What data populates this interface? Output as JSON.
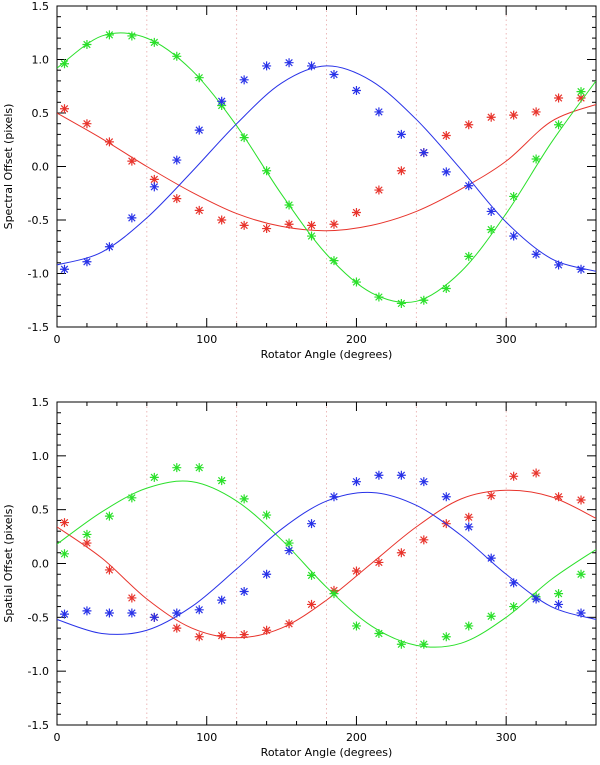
{
  "chart_data": [
    {
      "type": "scatter",
      "title": "",
      "xlabel": "Rotator Angle (degrees)",
      "ylabel": "Spectral Offset (pixels)",
      "xlim": [
        0,
        360
      ],
      "ylim": [
        -1.5,
        1.5
      ],
      "xticks": [
        0,
        100,
        200,
        300
      ],
      "xtick_labels": [
        "0",
        "100",
        "200",
        "300"
      ],
      "yticks": [
        -1.5,
        -1.0,
        -0.5,
        0.0,
        0.5,
        1.0,
        1.5
      ],
      "ytick_labels": [
        "-1.5",
        "-1.0",
        "-0.5",
        "0.0",
        "0.5",
        "1.0",
        "1.5"
      ],
      "reference_lines_x": [
        60,
        120,
        180,
        240,
        300
      ],
      "series": [
        {
          "name": "red",
          "color": "#e8342c",
          "x": [
            5,
            20,
            35,
            50,
            65,
            80,
            95,
            110,
            125,
            140,
            155,
            170,
            185,
            200,
            215,
            230,
            245,
            260,
            275,
            290,
            305,
            320,
            335,
            350
          ],
          "y": [
            0.54,
            0.4,
            0.23,
            0.05,
            -0.12,
            -0.3,
            -0.41,
            -0.5,
            -0.55,
            -0.58,
            -0.54,
            -0.55,
            -0.54,
            -0.43,
            -0.22,
            -0.04,
            0.13,
            0.29,
            0.39,
            0.46,
            0.48,
            0.51,
            0.64,
            0.64
          ],
          "fit": {
            "x": [
              0,
              30,
              60,
              90,
              120,
              150,
              180,
              210,
              240,
              270,
              300,
              330,
              360
            ],
            "y": [
              0.5,
              0.26,
              0.0,
              -0.24,
              -0.44,
              -0.56,
              -0.6,
              -0.55,
              -0.42,
              -0.21,
              0.05,
              0.42,
              0.58
            ]
          }
        },
        {
          "name": "green",
          "color": "#2ae02a",
          "x": [
            5,
            20,
            35,
            50,
            65,
            80,
            95,
            110,
            125,
            140,
            155,
            170,
            185,
            200,
            215,
            230,
            245,
            260,
            275,
            290,
            305,
            320,
            335,
            350
          ],
          "y": [
            0.96,
            1.14,
            1.23,
            1.22,
            1.16,
            1.03,
            0.83,
            0.57,
            0.27,
            -0.04,
            -0.36,
            -0.65,
            -0.88,
            -1.08,
            -1.22,
            -1.28,
            -1.25,
            -1.14,
            -0.84,
            -0.59,
            -0.28,
            0.07,
            0.39,
            0.7
          ],
          "fit": {
            "x": [
              0,
              30,
              60,
              90,
              120,
              150,
              180,
              210,
              240,
              270,
              300,
              330,
              360
            ],
            "y": [
              0.92,
              1.22,
              1.2,
              0.9,
              0.38,
              -0.26,
              -0.82,
              -1.18,
              -1.26,
              -0.98,
              -0.44,
              0.22,
              0.8
            ]
          }
        },
        {
          "name": "blue",
          "color": "#2832e8",
          "x": [
            5,
            20,
            35,
            50,
            65,
            80,
            95,
            110,
            125,
            140,
            155,
            170,
            185,
            200,
            215,
            230,
            245,
            260,
            275,
            290,
            305,
            320,
            335,
            350
          ],
          "y": [
            -0.96,
            -0.89,
            -0.75,
            -0.48,
            -0.19,
            0.06,
            0.34,
            0.61,
            0.81,
            0.94,
            0.97,
            0.94,
            0.86,
            0.71,
            0.51,
            0.3,
            0.13,
            -0.05,
            -0.18,
            -0.42,
            -0.65,
            -0.82,
            -0.92,
            -0.96
          ],
          "fit": {
            "x": [
              0,
              30,
              60,
              90,
              120,
              150,
              180,
              210,
              240,
              270,
              300,
              330,
              360
            ],
            "y": [
              -0.92,
              -0.8,
              -0.48,
              -0.05,
              0.4,
              0.78,
              0.94,
              0.8,
              0.44,
              -0.03,
              -0.52,
              -0.86,
              -0.98
            ]
          }
        }
      ]
    },
    {
      "type": "scatter",
      "title": "",
      "xlabel": "Rotator Angle (degrees)",
      "ylabel": "Spatial Offset (pixels)",
      "xlim": [
        0,
        360
      ],
      "ylim": [
        -1.5,
        1.5
      ],
      "xticks": [
        0,
        100,
        200,
        300
      ],
      "xtick_labels": [
        "0",
        "100",
        "200",
        "300"
      ],
      "yticks": [
        -1.5,
        -1.0,
        -0.5,
        0.0,
        0.5,
        1.0,
        1.5
      ],
      "ytick_labels": [
        "-1.5",
        "-1.0",
        "-0.5",
        "0.0",
        "0.5",
        "1.0",
        "1.5"
      ],
      "reference_lines_x": [
        60,
        120,
        180,
        240,
        300
      ],
      "series": [
        {
          "name": "red",
          "color": "#e8342c",
          "x": [
            5,
            20,
            35,
            50,
            65,
            80,
            95,
            110,
            125,
            140,
            155,
            170,
            185,
            200,
            215,
            230,
            245,
            260,
            275,
            290,
            305,
            320,
            335,
            350
          ],
          "y": [
            0.38,
            0.19,
            -0.06,
            -0.32,
            -0.5,
            -0.6,
            -0.68,
            -0.67,
            -0.66,
            -0.62,
            -0.56,
            -0.38,
            -0.25,
            -0.07,
            0.01,
            0.1,
            0.22,
            0.37,
            0.43,
            0.63,
            0.81,
            0.84,
            0.62,
            0.59
          ],
          "fit": {
            "x": [
              0,
              30,
              60,
              90,
              120,
              150,
              180,
              210,
              240,
              270,
              300,
              330,
              360
            ],
            "y": [
              0.34,
              0.05,
              -0.33,
              -0.6,
              -0.69,
              -0.6,
              -0.34,
              0.0,
              0.34,
              0.6,
              0.68,
              0.62,
              0.42
            ]
          }
        },
        {
          "name": "green",
          "color": "#2ae02a",
          "x": [
            5,
            20,
            35,
            50,
            65,
            80,
            95,
            110,
            125,
            140,
            155,
            170,
            185,
            200,
            215,
            230,
            245,
            260,
            275,
            290,
            305,
            320,
            335,
            350
          ],
          "y": [
            0.09,
            0.27,
            0.44,
            0.61,
            0.8,
            0.89,
            0.89,
            0.77,
            0.6,
            0.45,
            0.19,
            -0.11,
            -0.28,
            -0.58,
            -0.65,
            -0.75,
            -0.75,
            -0.68,
            -0.58,
            -0.49,
            -0.4,
            -0.31,
            -0.28,
            -0.1
          ],
          "fit": {
            "x": [
              0,
              30,
              60,
              90,
              120,
              150,
              180,
              210,
              240,
              270,
              300,
              330,
              360
            ],
            "y": [
              0.18,
              0.48,
              0.7,
              0.76,
              0.58,
              0.22,
              -0.22,
              -0.58,
              -0.76,
              -0.74,
              -0.5,
              -0.15,
              0.13
            ]
          }
        },
        {
          "name": "blue",
          "color": "#2832e8",
          "x": [
            5,
            20,
            35,
            50,
            65,
            80,
            95,
            110,
            125,
            140,
            155,
            170,
            185,
            200,
            215,
            230,
            245,
            260,
            275,
            290,
            305,
            320,
            335,
            350
          ],
          "y": [
            -0.47,
            -0.44,
            -0.46,
            -0.46,
            -0.5,
            -0.46,
            -0.43,
            -0.34,
            -0.26,
            -0.1,
            0.12,
            0.37,
            0.62,
            0.76,
            0.82,
            0.82,
            0.76,
            0.62,
            0.34,
            0.05,
            -0.18,
            -0.33,
            -0.38,
            -0.46
          ],
          "fit": {
            "x": [
              0,
              30,
              60,
              90,
              120,
              150,
              180,
              210,
              240,
              270,
              300,
              330,
              360
            ],
            "y": [
              -0.52,
              -0.65,
              -0.62,
              -0.4,
              -0.05,
              0.32,
              0.58,
              0.66,
              0.54,
              0.26,
              -0.1,
              -0.4,
              -0.52
            ]
          }
        }
      ]
    }
  ]
}
